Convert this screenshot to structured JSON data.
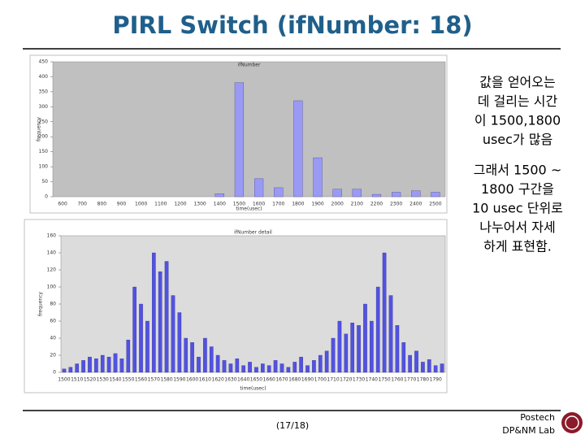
{
  "slide": {
    "title": "PIRL Switch (ifNumber: 18)",
    "note1": [
      "값을 얻어오는",
      "데 걸리는 시간",
      "이 1500,1800",
      "usec가 많음"
    ],
    "note2": [
      "그래서 1500 ~",
      "1800 구간을",
      "10 usec 단위로",
      "나누어서 자세",
      "하게 표현함."
    ],
    "page": "(17/18)",
    "footer": [
      "Postech",
      "DP&NM Lab"
    ]
  },
  "chart_data": [
    {
      "type": "bar",
      "title": "ifNumber",
      "x_label": "time(usec)",
      "y_label": "frequency",
      "categories": [
        "600",
        "700",
        "800",
        "900",
        "1000",
        "1100",
        "1200",
        "1300",
        "1400",
        "1500",
        "1600",
        "1700",
        "1800",
        "1900",
        "2000",
        "2100",
        "2200",
        "2300",
        "2400",
        "2500"
      ],
      "values": [
        0,
        0,
        0,
        0,
        0,
        0,
        0,
        0,
        10,
        380,
        60,
        30,
        320,
        130,
        25,
        25,
        8,
        15,
        20,
        15
      ],
      "color": "#9a9af5",
      "ylim": [
        0,
        450
      ],
      "yticks": [
        0,
        50,
        100,
        150,
        200,
        250,
        300,
        350,
        400,
        450
      ]
    },
    {
      "type": "bar",
      "title": "ifNumber detail",
      "x_label": "time(usec)",
      "y_label": "frequency",
      "categories": [
        "1500",
        null,
        "1510",
        null,
        "1520",
        null,
        "1530",
        null,
        "1540",
        null,
        "1550",
        null,
        "1560",
        null,
        "1570",
        null,
        "1580",
        null,
        "1590",
        null,
        "1600",
        null,
        "1610",
        null,
        "1620",
        null,
        "1630",
        null,
        "1640",
        null,
        "1650",
        null,
        "1660",
        null,
        "1670",
        null,
        "1680",
        null,
        "1690",
        null,
        "1700",
        null,
        "1710",
        null,
        "1720",
        null,
        "1730",
        null,
        "1740",
        null,
        "1750",
        null,
        "1760",
        null,
        "1770",
        null,
        "1780",
        null,
        "1790",
        null
      ],
      "values": [
        4,
        6,
        10,
        14,
        18,
        16,
        20,
        18,
        22,
        16,
        38,
        100,
        80,
        60,
        140,
        118,
        130,
        90,
        70,
        40,
        35,
        18,
        40,
        30,
        20,
        14,
        10,
        16,
        8,
        12,
        6,
        10,
        8,
        14,
        10,
        6,
        12,
        18,
        8,
        14,
        20,
        25,
        40,
        60,
        45,
        58,
        55,
        80,
        60,
        100,
        140,
        90,
        55,
        35,
        20,
        25,
        12,
        15,
        8,
        10
      ],
      "color": "#5252e0",
      "ylim": [
        0,
        160
      ],
      "yticks": [
        0,
        20,
        40,
        60,
        80,
        100,
        120,
        140,
        160
      ]
    }
  ]
}
